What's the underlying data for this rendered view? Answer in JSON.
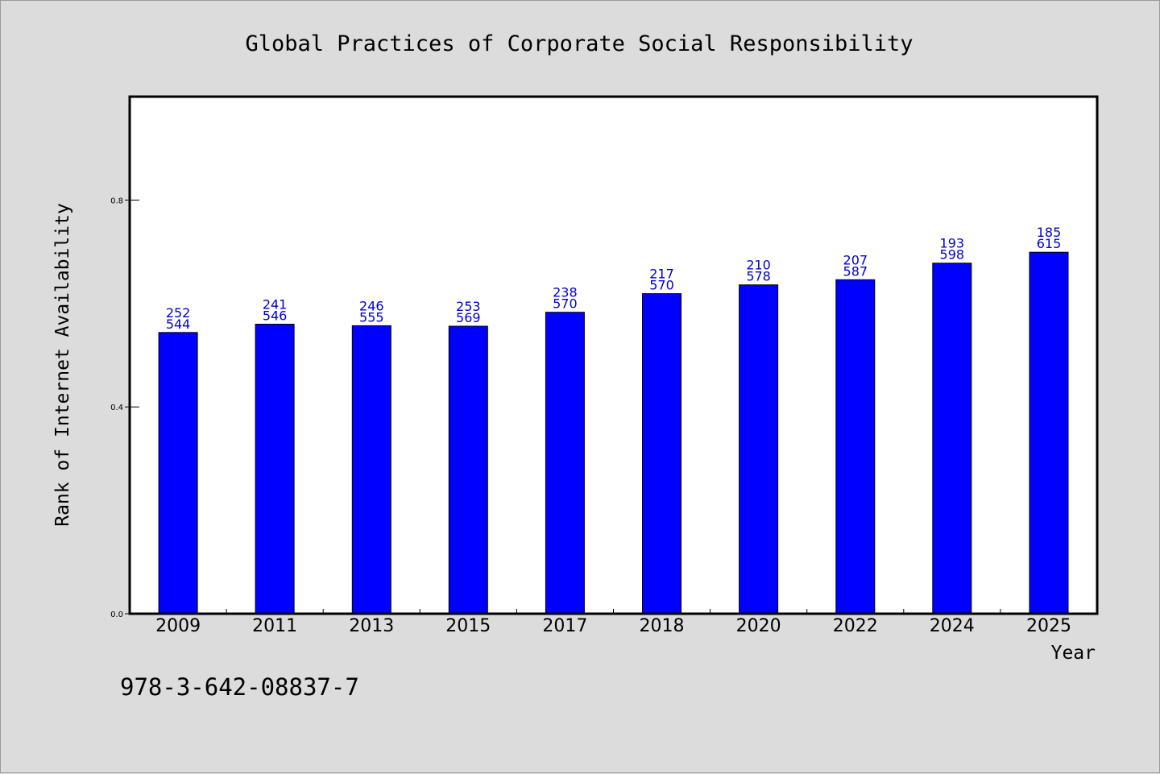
{
  "chart_data": {
    "type": "bar",
    "title": "Global Practices of Corporate Social Responsibility",
    "xlabel": "Year",
    "ylabel": "Rank of Internet Availability",
    "categories": [
      "2009",
      "2011",
      "2013",
      "2015",
      "2017",
      "2018",
      "2020",
      "2022",
      "2024",
      "2025"
    ],
    "series": [
      {
        "values": [
          0.544,
          0.56,
          0.557,
          0.556,
          0.583,
          0.619,
          0.636,
          0.646,
          0.678,
          0.699
        ],
        "label_top": [
          "252",
          "241",
          "246",
          "253",
          "238",
          "217",
          "210",
          "207",
          "193",
          "185"
        ],
        "label_bottom": [
          "544",
          "546",
          "555",
          "569",
          "570",
          "570",
          "578",
          "587",
          "598",
          "615"
        ]
      }
    ],
    "ylim": [
      0,
      1.0
    ],
    "yticks": [
      {
        "value": 0.0,
        "label": "0.0"
      },
      {
        "value": 0.4,
        "label": "0.4"
      },
      {
        "value": 0.8,
        "label": "0.8"
      }
    ],
    "bar_color": "#0000ff",
    "label_color": "#0000cc",
    "grid": false,
    "legend": "none"
  },
  "footer": {
    "isbn": "978-3-642-08837-7"
  }
}
